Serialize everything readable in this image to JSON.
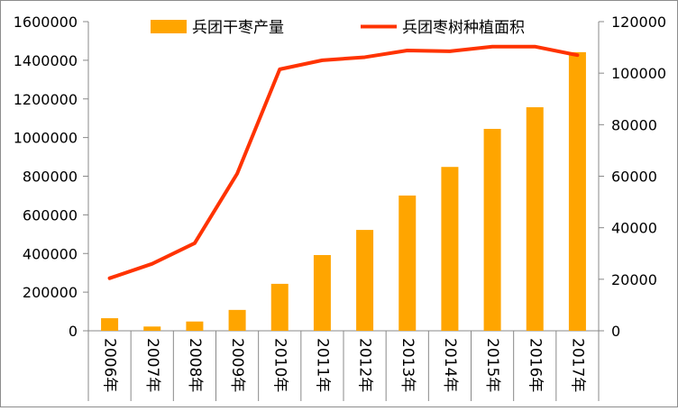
{
  "chart_data": {
    "type": "bar+line",
    "categories": [
      "2006年",
      "2007年",
      "2008年",
      "2009年",
      "2010年",
      "2011年",
      "2012年",
      "2013年",
      "2014年",
      "2015年",
      "2016年",
      "2017年"
    ],
    "series": [
      {
        "name": "兵团干枣产量",
        "type": "bar",
        "axis": "left",
        "color": "#FFA500",
        "values": [
          65000,
          22000,
          48000,
          108000,
          243000,
          392000,
          522000,
          700000,
          848000,
          1045000,
          1157000,
          1442000
        ]
      },
      {
        "name": "兵团枣树种植面积",
        "type": "line",
        "axis": "right",
        "color": "#FF3300",
        "values": [
          20400,
          26000,
          34000,
          61000,
          101500,
          105000,
          106200,
          108800,
          108500,
          110300,
          110300,
          107000
        ]
      }
    ],
    "left_axis": {
      "range": [
        0,
        1600000
      ],
      "ticks": [
        "0",
        "200000",
        "400000",
        "600000",
        "800000",
        "1000000",
        "1200000",
        "1400000",
        "1600000"
      ]
    },
    "right_axis": {
      "range": [
        0,
        120000
      ],
      "ticks": [
        "0",
        "20000",
        "40000",
        "60000",
        "80000",
        "100000",
        "120000"
      ]
    },
    "legend_position": "top",
    "grid": false
  }
}
